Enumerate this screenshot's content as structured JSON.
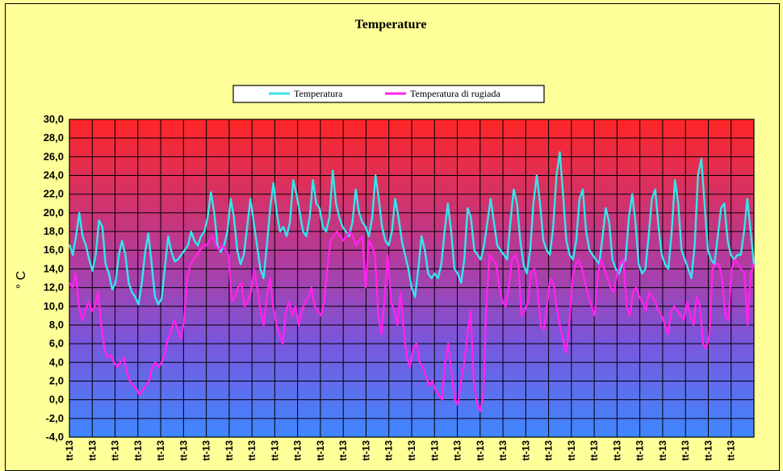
{
  "chart_data": {
    "type": "line",
    "title": "Temperature",
    "ylabel": "° C",
    "ylim": [
      -4,
      30
    ],
    "yticks": [
      "30,0",
      "28,0",
      "26,0",
      "24,0",
      "22,0",
      "20,0",
      "18,0",
      "16,0",
      "14,0",
      "12,0",
      "10,0",
      "8,0",
      "6,0",
      "4,0",
      "2,0",
      "0,0",
      "-2,0",
      "-4,0"
    ],
    "grid": true,
    "legend_position": "top-center",
    "x_tick_label": "tt-13",
    "x_tick_count": 30,
    "series": [
      {
        "name": "Temperatura",
        "color": "#33e6ee",
        "values": [
          16.6,
          15.5,
          17.5,
          20.0,
          17.5,
          16.5,
          15.0,
          13.8,
          15.5,
          19.2,
          18.5,
          14.5,
          13.5,
          11.8,
          12.5,
          15.5,
          17.0,
          15.5,
          12.5,
          11.5,
          11.0,
          10.2,
          12.5,
          15.8,
          17.8,
          14.5,
          11.0,
          10.2,
          10.8,
          14.0,
          17.5,
          15.8,
          14.8,
          15.0,
          15.5,
          16.0,
          16.5,
          18.0,
          17.0,
          16.5,
          17.5,
          18.0,
          19.5,
          22.2,
          20.0,
          16.5,
          15.8,
          16.5,
          18.0,
          21.5,
          19.5,
          16.0,
          14.5,
          15.5,
          18.5,
          21.5,
          19.0,
          16.5,
          14.0,
          13.0,
          16.5,
          20.5,
          23.2,
          20.0,
          18.0,
          18.5,
          17.5,
          19.0,
          23.5,
          22.0,
          20.0,
          18.0,
          17.5,
          19.5,
          23.5,
          21.0,
          20.5,
          18.5,
          18.0,
          19.5,
          24.5,
          21.0,
          19.5,
          18.5,
          18.0,
          17.5,
          19.0,
          22.5,
          20.0,
          19.0,
          18.5,
          17.5,
          19.5,
          24.0,
          21.5,
          18.5,
          17.0,
          16.5,
          18.0,
          21.5,
          19.5,
          17.0,
          15.5,
          14.0,
          12.0,
          11.0,
          14.0,
          17.5,
          16.0,
          13.5,
          13.0,
          13.5,
          13.0,
          14.5,
          18.0,
          21.0,
          18.0,
          14.0,
          13.5,
          12.5,
          15.0,
          20.5,
          19.5,
          16.0,
          15.5,
          15.0,
          16.5,
          19.0,
          21.5,
          19.0,
          16.5,
          16.0,
          15.5,
          15.0,
          19.0,
          22.5,
          21.0,
          17.0,
          14.5,
          13.5,
          16.0,
          21.0,
          24.0,
          21.0,
          17.0,
          16.0,
          15.5,
          18.5,
          24.0,
          26.5,
          22.0,
          17.0,
          15.5,
          15.0,
          17.0,
          21.5,
          22.5,
          18.0,
          16.0,
          15.5,
          15.0,
          14.5,
          17.5,
          20.5,
          19.0,
          15.0,
          14.0,
          13.5,
          14.5,
          15.0,
          19.5,
          22.0,
          19.0,
          14.5,
          13.5,
          14.0,
          17.5,
          21.5,
          22.5,
          18.5,
          15.5,
          14.5,
          14.0,
          18.0,
          23.5,
          21.0,
          16.0,
          15.0,
          14.0,
          13.0,
          16.5,
          24.0,
          25.8,
          21.0,
          16.0,
          15.0,
          14.5,
          17.5,
          20.5,
          21.0,
          17.0,
          15.5,
          15.0,
          15.5,
          15.5,
          18.0,
          21.5,
          18.0,
          14.5
        ]
      },
      {
        "name": "Temperatura di rugiada",
        "color": "#ff22ee",
        "values": [
          12.5,
          12.0,
          13.5,
          10.0,
          8.5,
          9.5,
          10.5,
          9.5,
          10.0,
          11.5,
          8.0,
          5.5,
          4.5,
          4.8,
          4.0,
          3.5,
          4.0,
          4.5,
          3.0,
          2.0,
          1.5,
          1.2,
          0.5,
          1.0,
          1.5,
          2.0,
          3.5,
          4.0,
          3.5,
          4.0,
          5.0,
          6.5,
          7.5,
          8.5,
          7.5,
          6.5,
          8.5,
          13.0,
          14.5,
          15.0,
          15.5,
          16.0,
          16.5,
          16.5,
          17.0,
          17.5,
          16.5,
          16.0,
          16.5,
          16.0,
          15.5,
          10.5,
          11.0,
          12.0,
          12.5,
          10.0,
          10.5,
          11.5,
          14.0,
          12.0,
          9.5,
          8.0,
          11.0,
          13.0,
          10.0,
          8.0,
          7.0,
          6.0,
          9.5,
          10.5,
          9.0,
          10.0,
          8.0,
          9.5,
          10.5,
          11.0,
          12.0,
          10.0,
          9.5,
          9.0,
          10.5,
          14.0,
          17.0,
          17.5,
          18.0,
          17.5,
          17.0,
          17.5,
          18.0,
          17.5,
          16.5,
          17.0,
          17.5,
          12.0,
          17.0,
          16.5,
          15.5,
          9.0,
          7.0,
          11.0,
          15.5,
          10.5,
          9.5,
          8.0,
          11.5,
          7.5,
          4.5,
          3.5,
          5.5,
          6.0,
          4.0,
          3.5,
          2.5,
          1.5,
          2.0,
          1.0,
          0.5,
          0.0,
          4.0,
          6.0,
          3.0,
          0.0,
          -0.5,
          2.0,
          4.0,
          7.0,
          9.5,
          2.0,
          -0.5,
          -1.2,
          0.5,
          10.5,
          15.5,
          15.0,
          14.5,
          12.0,
          10.5,
          10.0,
          12.0,
          15.0,
          15.5,
          14.5,
          9.0,
          9.5,
          10.5,
          13.5,
          14.0,
          12.0,
          8.0,
          7.5,
          10.0,
          13.0,
          12.5,
          10.0,
          8.0,
          6.5,
          5.0,
          8.0,
          13.0,
          14.5,
          15.0,
          14.0,
          12.5,
          11.0,
          10.0,
          9.0,
          13.5,
          15.0,
          14.0,
          13.0,
          12.0,
          11.5,
          13.5,
          14.5,
          15.0,
          10.0,
          9.0,
          11.5,
          12.0,
          11.0,
          10.5,
          9.5,
          11.5,
          11.0,
          10.5,
          9.5,
          9.0,
          8.0,
          7.0,
          9.5,
          10.0,
          9.5,
          9.0,
          8.5,
          10.5,
          9.0,
          8.0,
          11.0,
          10.0,
          6.0,
          5.5,
          7.0,
          14.0,
          14.5,
          14.5,
          13.0,
          9.0,
          8.5,
          14.0,
          15.0,
          14.5,
          14.0,
          13.5,
          8.0,
          13.5,
          14.5
        ]
      }
    ]
  }
}
